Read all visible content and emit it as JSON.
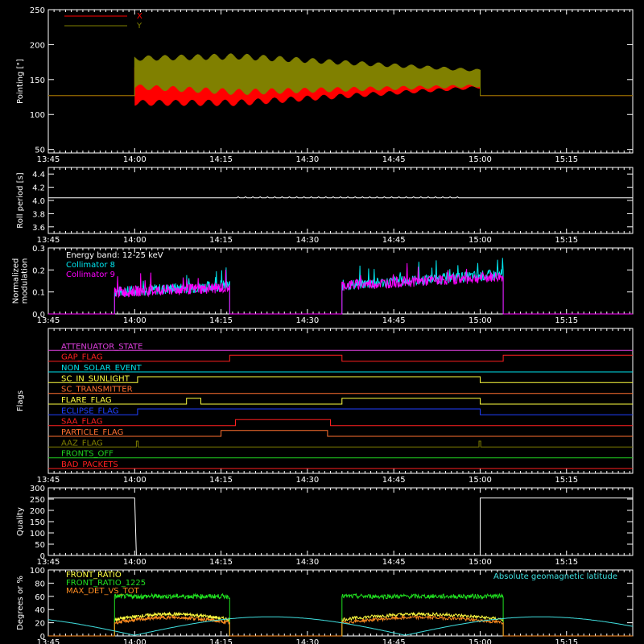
{
  "time_axis": {
    "range_minutes": [
      0,
      101.5
    ],
    "ticks": [
      {
        "label": "13:45",
        "t": 0
      },
      {
        "label": "14:00",
        "t": 15
      },
      {
        "label": "14:15",
        "t": 30
      },
      {
        "label": "14:30",
        "t": 45
      },
      {
        "label": "14:45",
        "t": 60
      },
      {
        "label": "15:00",
        "t": 75
      },
      {
        "label": "15:15",
        "t": 90
      }
    ]
  },
  "chart_data": [
    {
      "id": "pointing",
      "type": "line",
      "ylabel": "Pointing [\"]",
      "ylim": [
        45,
        250
      ],
      "yticks": [
        "50",
        "100",
        "150",
        "200",
        "250"
      ],
      "legend_position": "top-left",
      "series": [
        {
          "name": "X",
          "color": "#ff0000",
          "t_range": [
            15,
            75
          ],
          "baseline": 127,
          "center_start": 140,
          "center_end": 150,
          "amp_start": 55,
          "amp_peak": 62,
          "amp_end": 26
        },
        {
          "name": "Y",
          "color": "#808000",
          "t_range": [
            15,
            75
          ],
          "baseline": 127,
          "center_start": 160,
          "center_end": 152,
          "amp_start": 48,
          "amp_peak": 60,
          "amp_end": 26
        }
      ]
    },
    {
      "id": "roll_period",
      "type": "line",
      "ylabel": "Roll period [s]",
      "ylim": [
        3.5,
        4.5
      ],
      "yticks": [
        "3.6",
        "3.8",
        "4.0",
        "4.2",
        "4.4"
      ],
      "series": [
        {
          "color": "#ffffff",
          "value": 4.04,
          "blip_range": [
            32,
            72
          ]
        }
      ]
    },
    {
      "id": "modulation",
      "type": "line",
      "ylabel": "Normalized modulation",
      "ylim": [
        0,
        0.3
      ],
      "yticks": [
        "0.0",
        "0.1",
        "0.2",
        "0.3"
      ],
      "annotation": "Energy band: 12-25 keV",
      "series": [
        {
          "name": "Collimator 8",
          "color": "#00e5ee",
          "intervals": [
            [
              11.5,
              31.5,
              0.1,
              0.13
            ],
            [
              51,
              79,
              0.13,
              0.18
            ]
          ]
        },
        {
          "name": "Collimator 9",
          "color": "#ff00ff",
          "intervals": [
            [
              11.5,
              31.5,
              0.1,
              0.12
            ],
            [
              51,
              79,
              0.13,
              0.17
            ]
          ]
        }
      ]
    },
    {
      "id": "flags",
      "type": "line",
      "ylabel": "Flags",
      "series": [
        {
          "name": "ATTENUATOR_STATE",
          "color": "#e040e0",
          "transitions": []
        },
        {
          "name": "GAP_FLAG",
          "color": "#ff2020",
          "transitions": [
            31.5,
            51,
            79
          ]
        },
        {
          "name": "NON_SOLAR_EVENT",
          "color": "#00e5ee",
          "transitions": []
        },
        {
          "name": "SC_IN_SUNLIGHT",
          "color": "#ffff40",
          "transitions": [
            15.5,
            75
          ]
        },
        {
          "name": "SC_TRANSMITTER",
          "color": "#ff7030",
          "transitions": []
        },
        {
          "name": "FLARE_FLAG",
          "color": "#ffff40",
          "transitions": [
            24,
            26.5,
            51,
            75
          ]
        },
        {
          "name": "ECLIPSE_FLAG",
          "color": "#2040ff",
          "transitions": [
            15.5,
            75
          ]
        },
        {
          "name": "SAA_FLAG",
          "color": "#ff2020",
          "transitions": [
            32.5,
            49
          ]
        },
        {
          "name": "PARTICLE_FLAG",
          "color": "#ff7030",
          "transitions": [
            30,
            48.5
          ]
        },
        {
          "name": "AAZ_FLAG",
          "color": "#808000",
          "transitions": [
            15.3,
            15.6,
            74.8,
            75.1
          ]
        },
        {
          "name": "FRONTS_OFF",
          "color": "#20d020",
          "transitions": []
        },
        {
          "name": "BAD_PACKETS",
          "color": "#ff2020",
          "transitions": []
        }
      ]
    },
    {
      "id": "quality",
      "type": "line",
      "ylabel": "Quality",
      "ylim": [
        0,
        300
      ],
      "yticks": [
        "0",
        "50",
        "100",
        "150",
        "200",
        "250",
        "300"
      ],
      "series": [
        {
          "color": "#ffffff",
          "high": 255,
          "low": 0,
          "drop_at": 15,
          "rise_at": 75
        }
      ]
    },
    {
      "id": "ratios",
      "type": "line",
      "ylabel": "Degrees or %",
      "ylim": [
        0,
        100
      ],
      "yticks": [
        "0",
        "20",
        "40",
        "60",
        "80",
        "100"
      ],
      "series": [
        {
          "name": "FRONT_RATIO",
          "color": "#ffff40",
          "level": 25
        },
        {
          "name": "FRONT_RATIO_1225",
          "color": "#20e020",
          "level": 60
        },
        {
          "name": "MAX_DET_VS_TOT",
          "color": "#ff8c20",
          "level": 20
        },
        {
          "name": "Absolute geomagnetic latitude",
          "color": "#40e0e0"
        }
      ]
    }
  ]
}
